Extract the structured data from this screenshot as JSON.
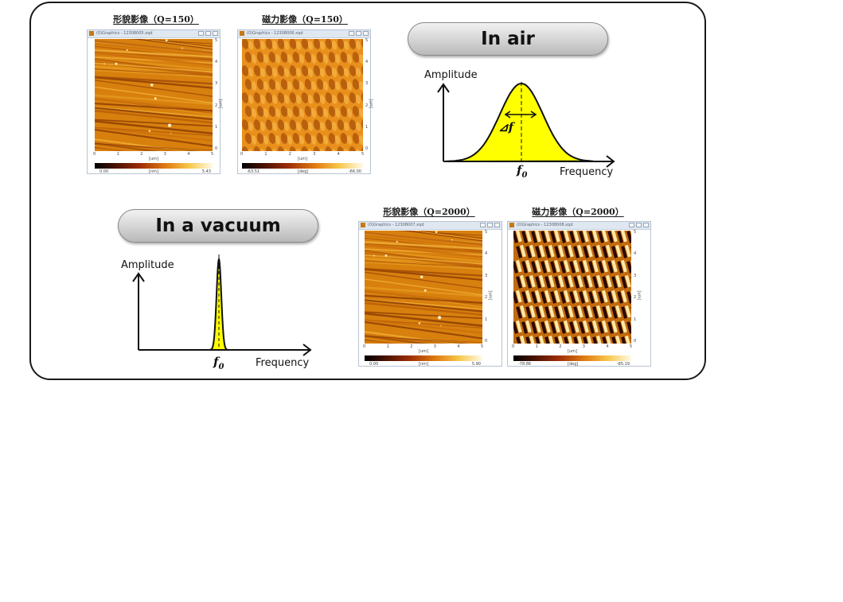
{
  "images": {
    "air_topo": {
      "title": "形貌影像（Q=150）",
      "caption": "(0)Graphics - 12308005.xqd",
      "x_ticks": [
        "0",
        "1",
        "2",
        "3",
        "4",
        "5"
      ],
      "y_ticks": [
        "5",
        "4",
        "3",
        "2",
        "1",
        "0"
      ],
      "x_unit": "[um]",
      "y_unit": "[um]",
      "cbar_min": "0.00",
      "cbar_unit": "[nm]",
      "cbar_max": "5.43"
    },
    "air_mag": {
      "title": "磁力影像（Q=150）",
      "caption": "(0)Graphics - 12308006.xqd",
      "x_ticks": [
        "0",
        "1",
        "2",
        "3",
        "4",
        "5"
      ],
      "y_ticks": [
        "5",
        "4",
        "3",
        "2",
        "1",
        "0"
      ],
      "x_unit": "[um]",
      "y_unit": "[um]",
      "cbar_min": "-63.51",
      "cbar_unit": "[deg]",
      "cbar_max": "-66.00"
    },
    "vac_topo": {
      "title": "形貌影像（Q=2000）",
      "caption": "(0)Graphics - 12308007.xqd",
      "x_ticks": [
        "0",
        "1",
        "2",
        "3",
        "4",
        "5"
      ],
      "y_ticks": [
        "5",
        "4",
        "3",
        "2",
        "1",
        "0"
      ],
      "x_unit": "[um]",
      "y_unit": "[um]",
      "cbar_min": "0.00",
      "cbar_unit": "[nm]",
      "cbar_max": "5.90"
    },
    "vac_mag": {
      "title": "磁力影像（Q=2000）",
      "caption": "(0)Graphics - 12308008.xqd",
      "x_ticks": [
        "0",
        "1",
        "2",
        "3",
        "4",
        "5"
      ],
      "y_ticks": [
        "5",
        "4",
        "3",
        "2",
        "1",
        "0"
      ],
      "x_unit": "[um]",
      "y_unit": "[um]",
      "cbar_min": "-78.86",
      "cbar_unit": "[deg]",
      "cbar_max": "-85.19"
    }
  },
  "air": {
    "label": "In air",
    "y_axis_label": "Amplitude",
    "x_axis_label": "Frequency",
    "peak_label": "f",
    "peak_sub": "0",
    "width_label": "⊿f",
    "peak_color": "#ffff00"
  },
  "vacuum": {
    "label": "In a vacuum",
    "y_axis_label": "Amplitude",
    "x_axis_label": "Frequency",
    "peak_label": "f",
    "peak_sub": "0",
    "peak_color": "#ffff00"
  }
}
